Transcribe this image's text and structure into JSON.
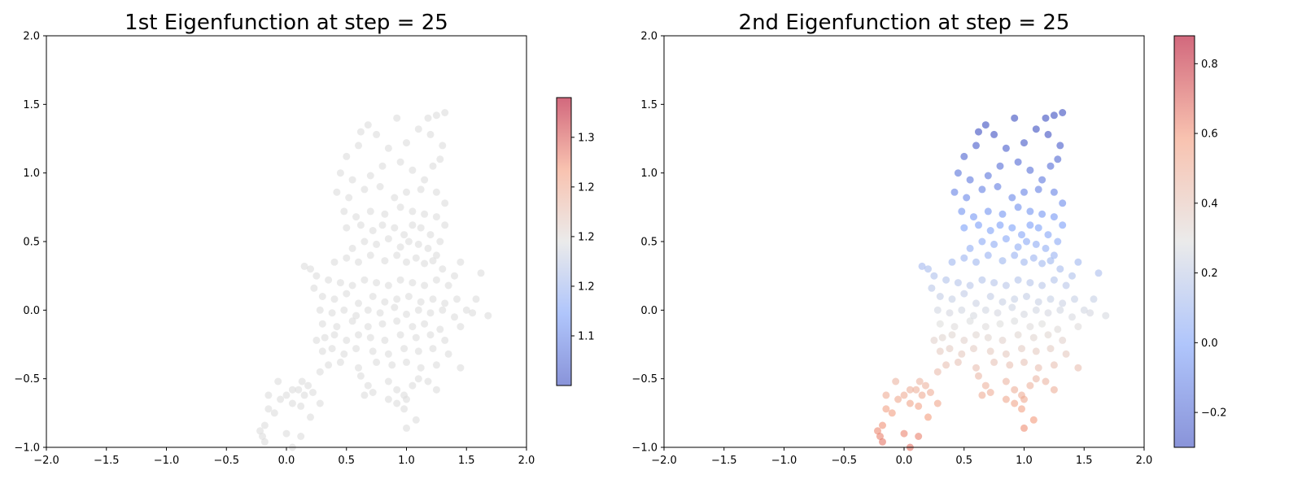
{
  "chart_data": [
    {
      "type": "scatter",
      "title": "1st Eigenfunction at step = 25",
      "xlabel": "",
      "ylabel": "",
      "xlim": [
        -2.0,
        2.0
      ],
      "ylim": [
        -1.0,
        2.0
      ],
      "xticks": [
        -2.0,
        -1.5,
        -1.0,
        -0.5,
        0.0,
        0.5,
        1.0,
        1.5,
        2.0
      ],
      "xtick_labels": [
        "−2.0",
        "−1.5",
        "−1.0",
        "−0.5",
        "0.0",
        "0.5",
        "1.0",
        "1.5",
        "2.0"
      ],
      "yticks": [
        -1.0,
        -0.5,
        0.0,
        0.5,
        1.0,
        1.5,
        2.0
      ],
      "ytick_labels": [
        "−1.0",
        "−0.5",
        "0.0",
        "0.5",
        "1.0",
        "1.5",
        "2.0"
      ],
      "colormap": "coolwarm",
      "marker_color": "#dcdcdc",
      "alpha": 0.6,
      "grid": false,
      "colorbar": {
        "range": [
          1.05,
          1.34
        ],
        "ticks": [
          1.1,
          1.2,
          1.2,
          1.2,
          1.3
        ],
        "tick_labels": [
          "1.1",
          "1.2",
          "1.2",
          "1.2",
          "1.3"
        ],
        "tick_positions": [
          1.1,
          1.15,
          1.2,
          1.25,
          1.3
        ]
      },
      "points": [
        [
          0.62,
          1.3
        ],
        [
          0.68,
          1.35
        ],
        [
          0.92,
          1.4
        ],
        [
          1.18,
          1.4
        ],
        [
          1.25,
          1.42
        ],
        [
          1.32,
          1.44
        ],
        [
          0.5,
          1.12
        ],
        [
          0.6,
          1.2
        ],
        [
          0.75,
          1.28
        ],
        [
          0.85,
          1.18
        ],
        [
          1.0,
          1.22
        ],
        [
          1.1,
          1.32
        ],
        [
          1.2,
          1.28
        ],
        [
          1.3,
          1.2
        ],
        [
          1.28,
          1.1
        ],
        [
          0.45,
          1.0
        ],
        [
          0.55,
          0.95
        ],
        [
          0.7,
          0.98
        ],
        [
          0.8,
          1.05
        ],
        [
          0.95,
          1.08
        ],
        [
          1.05,
          1.02
        ],
        [
          1.15,
          0.95
        ],
        [
          1.22,
          1.05
        ],
        [
          0.42,
          0.86
        ],
        [
          0.52,
          0.82
        ],
        [
          0.65,
          0.88
        ],
        [
          0.78,
          0.9
        ],
        [
          0.9,
          0.82
        ],
        [
          1.0,
          0.86
        ],
        [
          1.12,
          0.88
        ],
        [
          1.25,
          0.86
        ],
        [
          1.32,
          0.78
        ],
        [
          0.48,
          0.72
        ],
        [
          0.58,
          0.68
        ],
        [
          0.7,
          0.72
        ],
        [
          0.82,
          0.7
        ],
        [
          0.95,
          0.75
        ],
        [
          1.05,
          0.72
        ],
        [
          1.15,
          0.7
        ],
        [
          1.25,
          0.68
        ],
        [
          1.32,
          0.62
        ],
        [
          0.5,
          0.6
        ],
        [
          0.62,
          0.62
        ],
        [
          0.72,
          0.58
        ],
        [
          0.8,
          0.62
        ],
        [
          0.9,
          0.6
        ],
        [
          0.98,
          0.55
        ],
        [
          1.05,
          0.62
        ],
        [
          1.12,
          0.6
        ],
        [
          1.2,
          0.55
        ],
        [
          1.28,
          0.5
        ],
        [
          0.55,
          0.45
        ],
        [
          0.65,
          0.5
        ],
        [
          0.75,
          0.48
        ],
        [
          0.85,
          0.52
        ],
        [
          0.95,
          0.46
        ],
        [
          1.02,
          0.5
        ],
        [
          1.1,
          0.48
        ],
        [
          1.18,
          0.45
        ],
        [
          1.25,
          0.4
        ],
        [
          0.4,
          0.35
        ],
        [
          0.5,
          0.38
        ],
        [
          0.6,
          0.35
        ],
        [
          0.7,
          0.4
        ],
        [
          0.82,
          0.36
        ],
        [
          0.92,
          0.4
        ],
        [
          1.0,
          0.35
        ],
        [
          1.08,
          0.38
        ],
        [
          1.15,
          0.34
        ],
        [
          1.22,
          0.36
        ],
        [
          1.3,
          0.3
        ],
        [
          0.15,
          0.32
        ],
        [
          0.2,
          0.3
        ],
        [
          1.45,
          0.35
        ],
        [
          1.4,
          0.25
        ],
        [
          1.62,
          0.27
        ],
        [
          0.25,
          0.25
        ],
        [
          0.35,
          0.22
        ],
        [
          0.45,
          0.2
        ],
        [
          0.55,
          0.18
        ],
        [
          0.65,
          0.22
        ],
        [
          0.75,
          0.2
        ],
        [
          0.85,
          0.18
        ],
        [
          0.95,
          0.22
        ],
        [
          1.05,
          0.2
        ],
        [
          1.15,
          0.18
        ],
        [
          1.25,
          0.22
        ],
        [
          1.35,
          0.18
        ],
        [
          0.23,
          0.16
        ],
        [
          0.3,
          0.1
        ],
        [
          0.4,
          0.08
        ],
        [
          0.5,
          0.12
        ],
        [
          0.6,
          0.05
        ],
        [
          0.72,
          0.1
        ],
        [
          0.82,
          0.06
        ],
        [
          0.92,
          0.08
        ],
        [
          1.02,
          0.1
        ],
        [
          1.12,
          0.06
        ],
        [
          1.22,
          0.08
        ],
        [
          1.32,
          0.05
        ],
        [
          1.42,
          0.08
        ],
        [
          1.58,
          0.08
        ],
        [
          1.5,
          0.0
        ],
        [
          1.68,
          -0.04
        ],
        [
          0.28,
          0.0
        ],
        [
          0.38,
          -0.02
        ],
        [
          0.48,
          0.0
        ],
        [
          0.58,
          -0.04
        ],
        [
          0.68,
          0.0
        ],
        [
          0.78,
          -0.02
        ],
        [
          0.9,
          0.02
        ],
        [
          1.0,
          -0.03
        ],
        [
          1.1,
          0.0
        ],
        [
          1.2,
          -0.02
        ],
        [
          1.3,
          0.0
        ],
        [
          1.4,
          -0.05
        ],
        [
          1.55,
          -0.02
        ],
        [
          0.3,
          -0.1
        ],
        [
          0.42,
          -0.12
        ],
        [
          0.55,
          -0.08
        ],
        [
          0.68,
          -0.12
        ],
        [
          0.8,
          -0.1
        ],
        [
          0.92,
          -0.08
        ],
        [
          1.05,
          -0.12
        ],
        [
          1.15,
          -0.1
        ],
        [
          1.28,
          -0.14
        ],
        [
          1.45,
          -0.12
        ],
        [
          0.25,
          -0.22
        ],
        [
          0.32,
          -0.2
        ],
        [
          0.4,
          -0.18
        ],
        [
          0.5,
          -0.22
        ],
        [
          0.6,
          -0.18
        ],
        [
          0.7,
          -0.2
        ],
        [
          0.82,
          -0.22
        ],
        [
          0.95,
          -0.18
        ],
        [
          1.08,
          -0.2
        ],
        [
          1.2,
          -0.18
        ],
        [
          1.32,
          -0.22
        ],
        [
          0.3,
          -0.3
        ],
        [
          0.38,
          -0.28
        ],
        [
          0.48,
          -0.32
        ],
        [
          0.58,
          -0.28
        ],
        [
          0.72,
          -0.3
        ],
        [
          0.85,
          -0.32
        ],
        [
          0.98,
          -0.28
        ],
        [
          1.1,
          -0.3
        ],
        [
          1.22,
          -0.28
        ],
        [
          1.35,
          -0.32
        ],
        [
          0.35,
          -0.4
        ],
        [
          0.45,
          -0.38
        ],
        [
          0.6,
          -0.42
        ],
        [
          0.75,
          -0.38
        ],
        [
          0.88,
          -0.4
        ],
        [
          1.0,
          -0.38
        ],
        [
          1.12,
          -0.42
        ],
        [
          1.25,
          -0.4
        ],
        [
          1.45,
          -0.42
        ],
        [
          0.28,
          -0.45
        ],
        [
          0.62,
          -0.48
        ],
        [
          0.68,
          -0.55
        ],
        [
          0.72,
          -0.6
        ],
        [
          0.65,
          -0.62
        ],
        [
          0.85,
          -0.52
        ],
        [
          0.92,
          -0.58
        ],
        [
          0.98,
          -0.62
        ],
        [
          1.05,
          -0.55
        ],
        [
          1.1,
          -0.5
        ],
        [
          1.18,
          -0.52
        ],
        [
          1.25,
          -0.58
        ],
        [
          0.92,
          -0.68
        ],
        [
          0.98,
          -0.72
        ],
        [
          1.0,
          -0.65
        ],
        [
          0.85,
          -0.65
        ],
        [
          -0.07,
          -0.52
        ],
        [
          0.13,
          -0.52
        ],
        [
          0.18,
          -0.55
        ],
        [
          0.22,
          -0.6
        ],
        [
          0.28,
          -0.68
        ],
        [
          0.15,
          -0.62
        ],
        [
          0.05,
          -0.58
        ],
        [
          0.1,
          -0.58
        ],
        [
          0.0,
          -0.62
        ],
        [
          -0.05,
          -0.65
        ],
        [
          -0.1,
          -0.75
        ],
        [
          -0.15,
          -0.62
        ],
        [
          0.05,
          -0.68
        ],
        [
          0.12,
          -0.7
        ],
        [
          0.2,
          -0.78
        ],
        [
          -0.15,
          -0.72
        ],
        [
          -0.18,
          -0.84
        ],
        [
          -0.22,
          -0.88
        ],
        [
          -0.2,
          -0.92
        ],
        [
          -0.18,
          -0.96
        ],
        [
          0.12,
          -0.92
        ],
        [
          0.0,
          -0.9
        ],
        [
          0.05,
          -1.0
        ],
        [
          1.0,
          -0.86
        ],
        [
          1.08,
          -0.8
        ]
      ]
    },
    {
      "type": "scatter",
      "title": "2nd Eigenfunction at step = 25",
      "xlabel": "",
      "ylabel": "",
      "xlim": [
        -2.0,
        2.0
      ],
      "ylim": [
        -1.0,
        2.0
      ],
      "xticks": [
        -2.0,
        -1.5,
        -1.0,
        -0.5,
        0.0,
        0.5,
        1.0,
        1.5,
        2.0
      ],
      "xtick_labels": [
        "−2.0",
        "−1.5",
        "−1.0",
        "−0.5",
        "0.0",
        "0.5",
        "1.0",
        "1.5",
        "2.0"
      ],
      "yticks": [
        -1.0,
        -0.5,
        0.0,
        0.5,
        1.0,
        1.5,
        2.0
      ],
      "ytick_labels": [
        "−1.0",
        "−0.5",
        "0.0",
        "0.5",
        "1.0",
        "1.5",
        "2.0"
      ],
      "colormap": "coolwarm",
      "alpha": 0.6,
      "grid": false,
      "color_value_rule": "value = 0.25 - 0.42 * y",
      "colorbar": {
        "range": [
          -0.3,
          0.88
        ],
        "ticks": [
          -0.2,
          0.0,
          0.2,
          0.4,
          0.6,
          0.8
        ],
        "tick_labels": [
          "−0.2",
          "0.0",
          "0.2",
          "0.4",
          "0.6",
          "0.8"
        ],
        "tick_positions": [
          -0.2,
          0.0,
          0.2,
          0.4,
          0.6,
          0.8
        ]
      },
      "points_same_as_panel": 0
    }
  ]
}
